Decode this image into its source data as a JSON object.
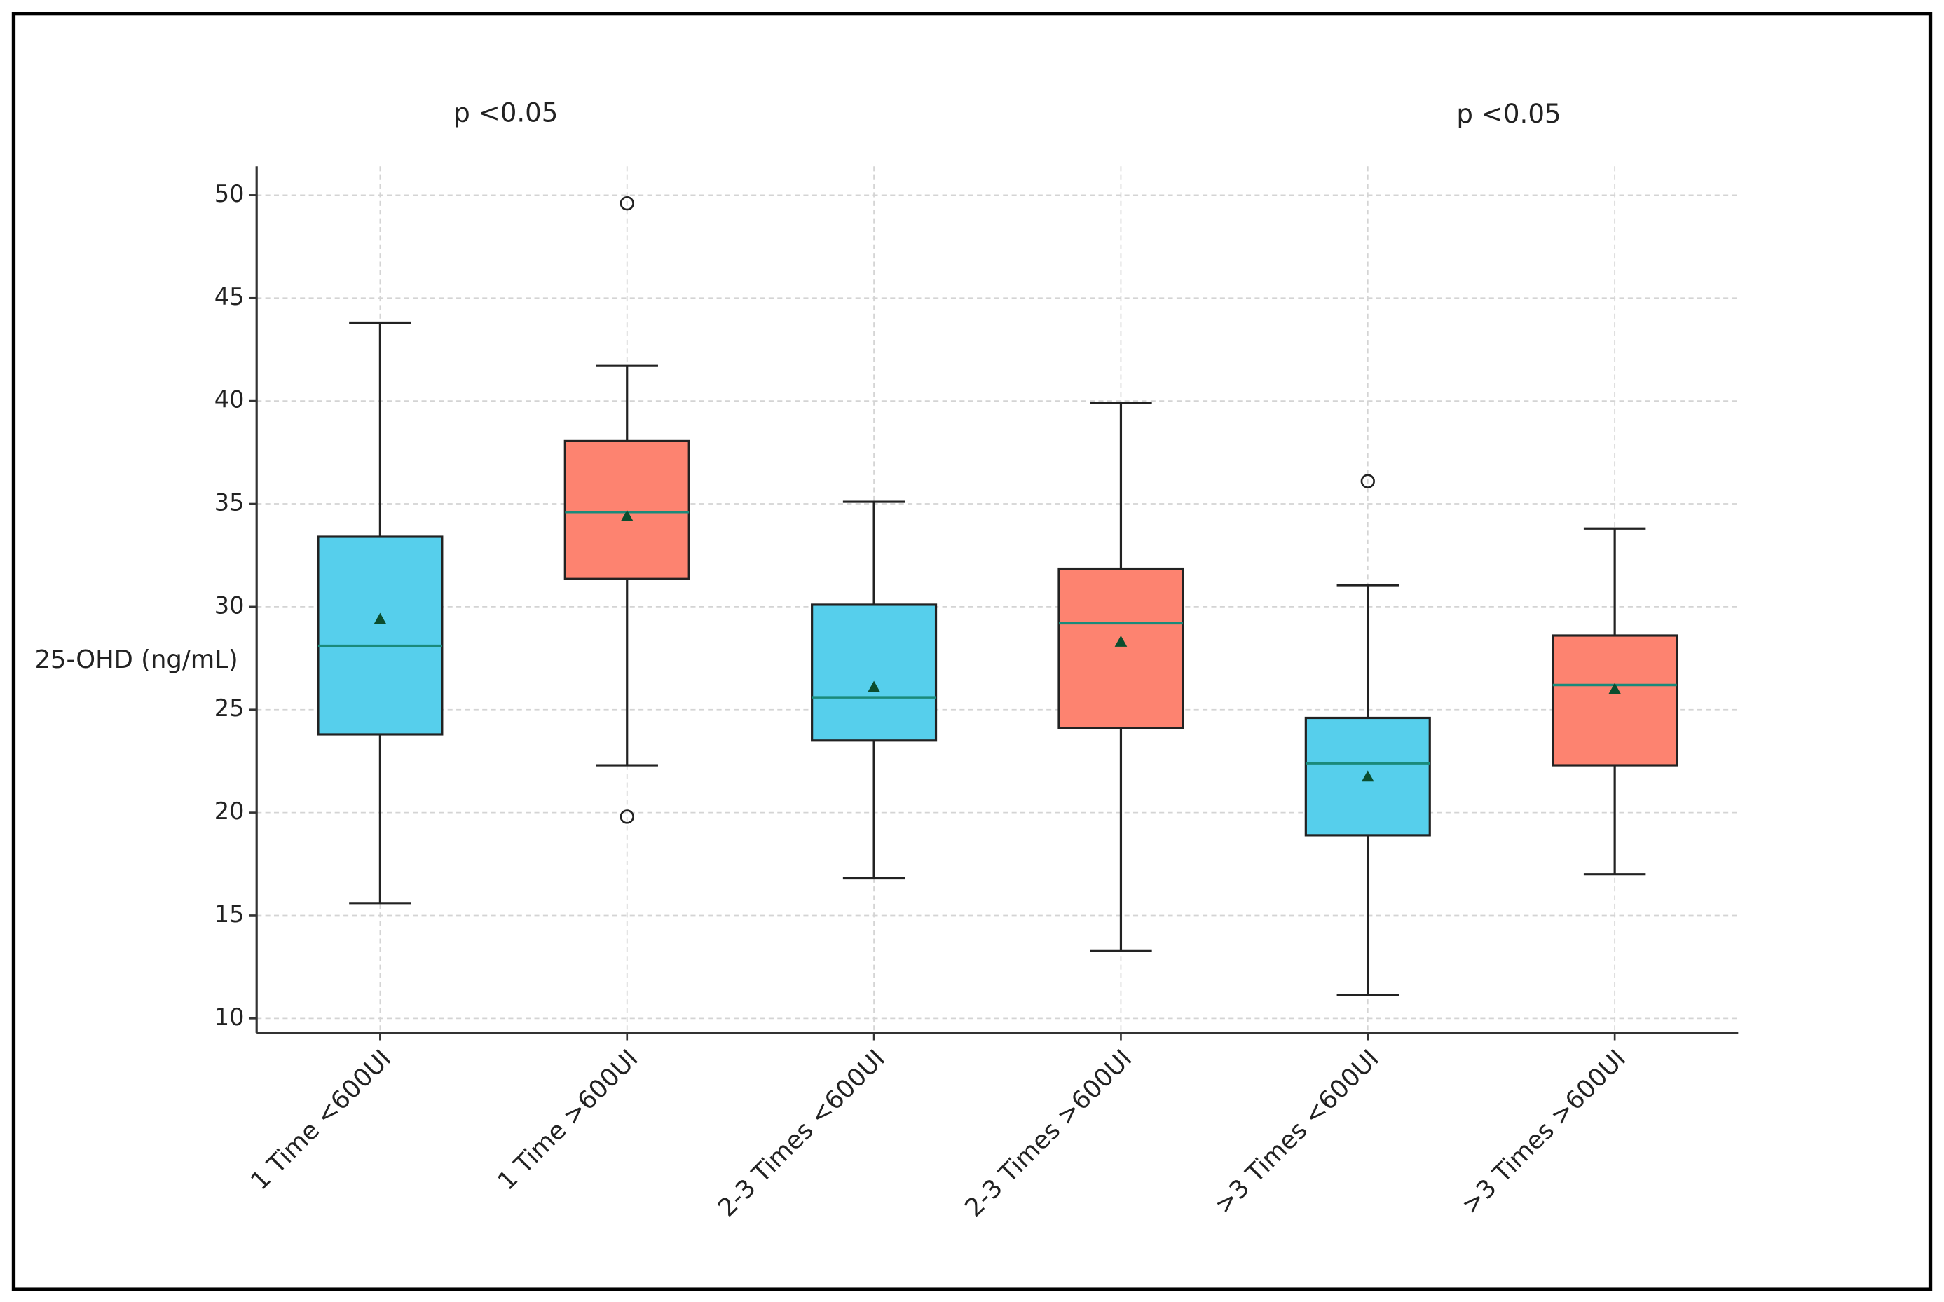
{
  "chart_data": {
    "type": "box",
    "ylabel": "25-OHD (ng/mL)",
    "categories": [
      "1 Time <600UI",
      "1 Time >600UI",
      "2-3 Times <600UI",
      "2-3 Times >600UI",
      ">3 Times <600UI",
      ">3 Times >600UI"
    ],
    "colors": [
      "#56cfec",
      "#fd8370",
      "#56cfec",
      "#fd8370",
      "#56cfec",
      "#fd8370"
    ],
    "boxes": [
      {
        "whisker_low": 15.6,
        "q1": 23.8,
        "median": 28.1,
        "q3": 33.4,
        "whisker_high": 43.8,
        "mean": 29.4,
        "outliers": []
      },
      {
        "whisker_low": 22.3,
        "q1": 31.35,
        "median": 34.6,
        "q3": 38.05,
        "whisker_high": 41.7,
        "mean": 34.4,
        "outliers": [
          49.6,
          19.8
        ]
      },
      {
        "whisker_low": 16.8,
        "q1": 23.5,
        "median": 25.6,
        "q3": 30.1,
        "whisker_high": 35.1,
        "mean": 26.1,
        "outliers": []
      },
      {
        "whisker_low": 13.3,
        "q1": 24.1,
        "median": 29.2,
        "q3": 31.85,
        "whisker_high": 39.9,
        "mean": 28.3,
        "outliers": []
      },
      {
        "whisker_low": 11.15,
        "q1": 18.9,
        "median": 22.4,
        "q3": 24.6,
        "whisker_high": 31.05,
        "mean": 21.75,
        "outliers": [
          36.1
        ]
      },
      {
        "whisker_low": 17.0,
        "q1": 22.3,
        "median": 26.2,
        "q3": 28.6,
        "whisker_high": 33.8,
        "mean": 26.0,
        "outliers": []
      }
    ],
    "median_color": "#1a8a7a",
    "mean_color": "#0b4d2e",
    "annotations": [
      "p <0.05",
      "p <0.05"
    ],
    "annotation_color": "#ff2a2a",
    "ylim": [
      9.3,
      51.4
    ],
    "yticks": [
      10,
      15,
      20,
      25,
      30,
      35,
      40,
      45,
      50
    ],
    "grid": true
  }
}
